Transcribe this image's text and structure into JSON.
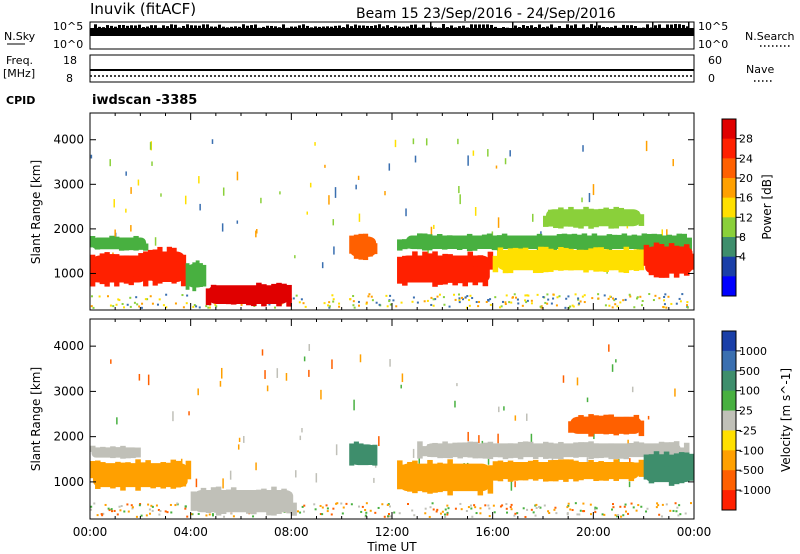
{
  "header": {
    "station": "Inuvik (fitACF)",
    "beam_date": "Beam 15  23/Sep/2016 - 24/Sep/2016"
  },
  "strip_sky": {
    "left_label": "N.Sky",
    "left_ticks": [
      "10^5",
      "10^0"
    ],
    "right_ticks": [
      "10^5",
      "10^0"
    ],
    "right_label": "N.Search"
  },
  "strip_freq": {
    "left_label_1": "Freq.",
    "left_label_2": "[MHz]",
    "left_ticks": [
      "18",
      "8"
    ],
    "right_ticks": [
      "60",
      "0"
    ],
    "right_label": "Nave"
  },
  "cpid": {
    "label": "CPID",
    "value": "iwdscan -3385"
  },
  "colors": {
    "scale": [
      "#0000ff",
      "#1a3fa8",
      "#3a6fb0",
      "#3e8e6c",
      "#48b040",
      "#8ad03a",
      "#ffe000",
      "#ffa000",
      "#ff6000",
      "#ff2000",
      "#e00000"
    ],
    "ground_scatter": "#c0c0b8"
  },
  "chart_data": [
    {
      "type": "heatmap",
      "name": "Power",
      "ylabel": "Slant Range [km]",
      "yticks": [
        1000,
        2000,
        3000,
        4000
      ],
      "ylim": [
        180,
        4600
      ],
      "colorbar": {
        "label": "Power [dB]",
        "ticks": [
          "28",
          "24",
          "20",
          "16",
          "12",
          "8",
          "4"
        ],
        "range": [
          0,
          30
        ]
      },
      "regions": [
        {
          "x": [
            0,
            2.3
          ],
          "y": [
            700,
            1500
          ],
          "value": 27
        },
        {
          "x": [
            0,
            2.3
          ],
          "y": [
            1500,
            1850
          ],
          "value": 12
        },
        {
          "x": [
            2.3,
            3.8
          ],
          "y": [
            700,
            1600
          ],
          "value": 27
        },
        {
          "x": [
            3.8,
            4.6
          ],
          "y": [
            600,
            1300
          ],
          "value": 12
        },
        {
          "x": [
            4.6,
            8.0
          ],
          "y": [
            250,
            800
          ],
          "value": 28
        },
        {
          "x": [
            10.3,
            11.4
          ],
          "y": [
            1300,
            1900
          ],
          "value": 22
        },
        {
          "x": [
            12.2,
            16.0
          ],
          "y": [
            700,
            1500
          ],
          "value": 27
        },
        {
          "x": [
            12.2,
            23.9
          ],
          "y": [
            1500,
            1900
          ],
          "value": 12
        },
        {
          "x": [
            16.0,
            22.0
          ],
          "y": [
            1000,
            1600
          ],
          "value": 18
        },
        {
          "x": [
            18.0,
            22.0
          ],
          "y": [
            2000,
            2500
          ],
          "value": 14
        },
        {
          "x": [
            22.0,
            24.0
          ],
          "y": [
            900,
            1700
          ],
          "value": 27
        }
      ]
    },
    {
      "type": "heatmap",
      "name": "Velocity",
      "xlabel": "Time UT",
      "ylabel": "Slant Range [km]",
      "xticks": [
        "00:00",
        "04:00",
        "08:00",
        "12:00",
        "16:00",
        "20:00",
        "00:00"
      ],
      "xlim": [
        0,
        24
      ],
      "yticks": [
        1000,
        2000,
        3000,
        4000
      ],
      "ylim": [
        180,
        4600
      ],
      "colorbar": {
        "label": "Velocity [m s^-1]",
        "ticks": [
          "1000",
          "500",
          "100",
          "25",
          "-25",
          "-100",
          "-500",
          "-1000"
        ],
        "range": [
          -1000,
          1000
        ]
      },
      "regions": [
        {
          "x": [
            0,
            4.0
          ],
          "y": [
            800,
            1500
          ],
          "value": -150
        },
        {
          "x": [
            0,
            2.0
          ],
          "y": [
            1500,
            1800
          ],
          "value": 0
        },
        {
          "x": [
            4.0,
            8.2
          ],
          "y": [
            250,
            900
          ],
          "value": 0
        },
        {
          "x": [
            10.3,
            11.4
          ],
          "y": [
            1300,
            1900
          ],
          "value": 300
        },
        {
          "x": [
            12.2,
            16.0
          ],
          "y": [
            700,
            1500
          ],
          "value": -400
        },
        {
          "x": [
            13.0,
            23.8
          ],
          "y": [
            1500,
            1900
          ],
          "value": 0
        },
        {
          "x": [
            16.0,
            22.0
          ],
          "y": [
            1000,
            1500
          ],
          "value": -300
        },
        {
          "x": [
            19.0,
            22.0
          ],
          "y": [
            2000,
            2500
          ],
          "value": -500
        },
        {
          "x": [
            22.0,
            24.0
          ],
          "y": [
            900,
            1700
          ],
          "value": 100
        }
      ]
    }
  ]
}
